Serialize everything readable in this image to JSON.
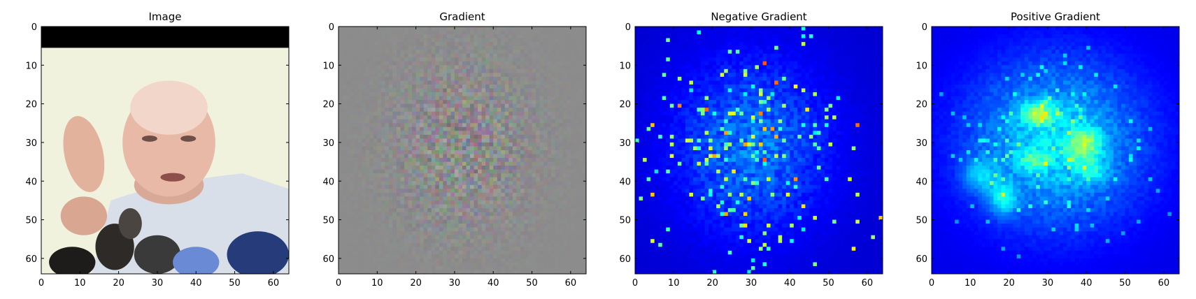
{
  "chart_data": [
    {
      "type": "image",
      "title": "Image",
      "content": "photo",
      "xlim": [
        0,
        64
      ],
      "ylim": [
        64,
        0
      ],
      "xticks": [
        0,
        10,
        20,
        30,
        40,
        50,
        60
      ],
      "yticks": [
        0,
        10,
        20,
        30,
        40,
        50,
        60
      ]
    },
    {
      "type": "image",
      "title": "Gradient",
      "content": "rgb-gradient",
      "xlim": [
        0,
        64
      ],
      "ylim": [
        64,
        0
      ],
      "xticks": [
        0,
        10,
        20,
        30,
        40,
        50,
        60
      ],
      "yticks": [
        0,
        10,
        20,
        30,
        40,
        50,
        60
      ]
    },
    {
      "type": "heatmap",
      "title": "Negative Gradient",
      "colormap": "jet",
      "xlim": [
        0,
        64
      ],
      "ylim": [
        64,
        0
      ],
      "xticks": [
        0,
        10,
        20,
        30,
        40,
        50,
        60
      ],
      "yticks": [
        0,
        10,
        20,
        30,
        40,
        50,
        60
      ]
    },
    {
      "type": "heatmap",
      "title": "Positive Gradient",
      "colormap": "jet",
      "xlim": [
        0,
        64
      ],
      "ylim": [
        64,
        0
      ],
      "xticks": [
        0,
        10,
        20,
        30,
        40,
        50,
        60
      ],
      "yticks": [
        0,
        10,
        20,
        30,
        40,
        50,
        60
      ]
    }
  ]
}
